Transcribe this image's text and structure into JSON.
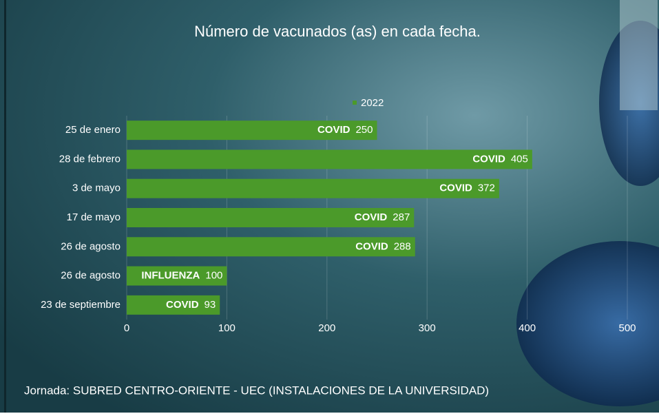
{
  "chart_data": {
    "type": "bar",
    "orientation": "horizontal",
    "title": "Número de vacunados (as) en cada fecha.",
    "categories": [
      "25 de enero",
      "28 de febrero",
      "3 de mayo",
      "17 de mayo",
      "26 de agosto",
      "26 de agosto",
      "23 de septiembre"
    ],
    "series": [
      {
        "name": "2022",
        "color": "#4b9a2a",
        "values": [
          250,
          405,
          372,
          287,
          288,
          100,
          93
        ]
      }
    ],
    "bar_labels": [
      "COVID",
      "COVID",
      "COVID",
      "COVID",
      "COVID",
      "INFLUENZA",
      "COVID"
    ],
    "xlim": [
      0,
      500
    ],
    "xticks": [
      0,
      100,
      200,
      300,
      400,
      500
    ],
    "grid": true,
    "legend": "top"
  },
  "footer": "Jornada: SUBRED CENTRO-ORIENTE - UEC (INSTALACIONES DE LA UNIVERSIDAD)"
}
